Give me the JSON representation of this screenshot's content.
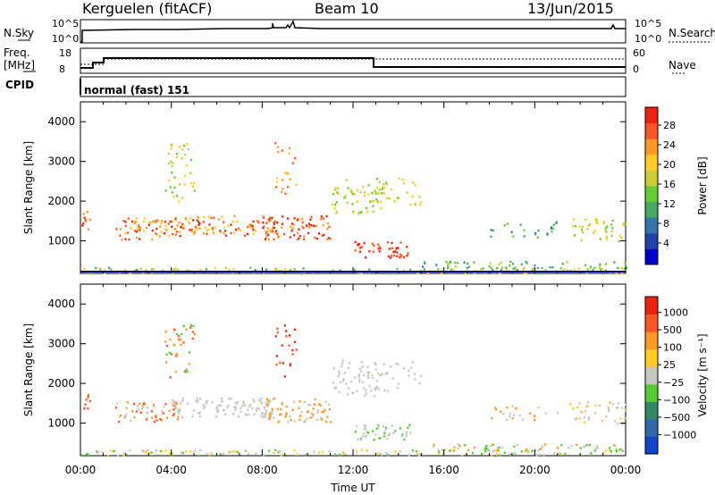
{
  "header": {
    "station": "Kerguelen (fitACF)",
    "beam": "Beam 10",
    "date": "13/Jun/2015"
  },
  "top_panel": {
    "left_label": "N.Sky",
    "right_label": "N.Search",
    "left_ticks": [
      "10^5",
      "10^0"
    ],
    "right_ticks": [
      "10^5",
      "10^0"
    ]
  },
  "freq_panel": {
    "left_label_1": "Freq.",
    "left_label_2": "[MHz]",
    "right_label": "Nave",
    "left_ticks": [
      "18",
      "8"
    ],
    "right_ticks": [
      "60",
      "0"
    ]
  },
  "cpid": {
    "label": "CPID",
    "mode": "normal (fast) 151"
  },
  "chart_data": [
    {
      "type": "heatmap",
      "quantity": "Power",
      "ylabel": "Slant Range [km]",
      "xlabel": "",
      "ylim": [
        180,
        4500
      ],
      "xlim": [
        0,
        24
      ],
      "yticks": [
        "4000",
        "3000",
        "2000",
        "1000"
      ],
      "colorbar_label": "Power [dB]",
      "colorbar_ticks": [
        "28",
        "24",
        "20",
        "16",
        "12",
        "8",
        "4"
      ],
      "colorbar_colors": [
        "#0000cc",
        "#2244aa",
        "#3377aa",
        "#44aa66",
        "#66cc33",
        "#cccc33",
        "#ffcc22",
        "#ff9922",
        "#ff5522",
        "#ee2211"
      ]
    },
    {
      "type": "heatmap",
      "quantity": "Velocity",
      "ylabel": "Slant Range [km]",
      "xlabel": "Time UT",
      "ylim": [
        180,
        4500
      ],
      "xlim": [
        0,
        24
      ],
      "yticks": [
        "4000",
        "3000",
        "2000",
        "1000"
      ],
      "xticks": [
        "00:00",
        "04:00",
        "08:00",
        "12:00",
        "16:00",
        "20:00",
        "00:00"
      ],
      "colorbar_label": "Velocity [m s⁻¹]",
      "colorbar_ticks": [
        "1000",
        "500",
        "100",
        "25",
        "−25",
        "−100",
        "−500",
        "−1000"
      ],
      "colorbar_colors": [
        "#1144cc",
        "#3366aa",
        "#338866",
        "#55cc33",
        "#c8c8c0",
        "#ffcc22",
        "#ff9922",
        "#ff5522",
        "#ee2211"
      ]
    }
  ]
}
